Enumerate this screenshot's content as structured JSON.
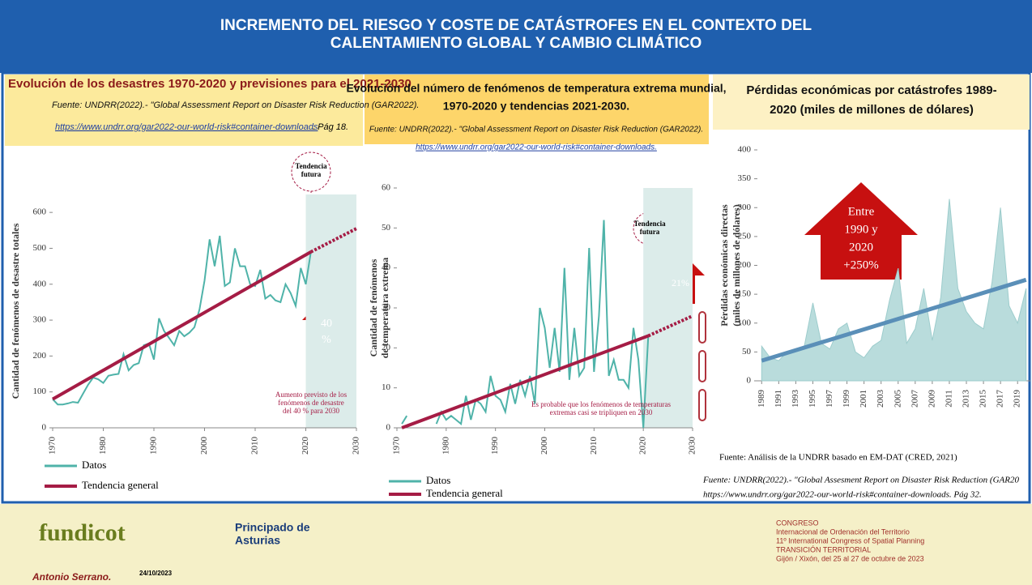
{
  "header": {
    "title": [
      "INCREMENTO DEL RIESGO Y COSTE DE CATÁSTROFES EN EL CONTEXTO DEL",
      "CALENTAMIENTO GLOBAL Y CAMBIO CLIMÁTICO"
    ]
  },
  "chart_data": [
    {
      "type": "line",
      "title": "Evolución de los desastres 1970-2020 y previsiones para el 2021-2030",
      "source": "Fuente: UNDRR(2022).- \"Global Assessment Report on Disaster Risk Reduction (GAR2022).",
      "link": "https://www.undrr.org/gar2022-our-world-risk#container-downloads",
      "link_suffix": ". Pág 18.",
      "ylabel": "Cantidad de fenómenos de desastre totales",
      "xlim": [
        1970,
        2030
      ],
      "xticks": [
        1970,
        1980,
        1990,
        2000,
        2010,
        2020,
        2030
      ],
      "ylim": [
        0,
        650
      ],
      "yticks": [
        0,
        100,
        200,
        300,
        400,
        500,
        600
      ],
      "series": [
        {
          "name": "Datos",
          "color": "#4fb3a9",
          "x": [
            1970,
            1971,
            1972,
            1973,
            1974,
            1975,
            1976,
            1977,
            1978,
            1979,
            1980,
            1981,
            1982,
            1983,
            1984,
            1985,
            1986,
            1987,
            1988,
            1989,
            1990,
            1991,
            1992,
            1993,
            1994,
            1995,
            1996,
            1997,
            1998,
            1999,
            2000,
            2001,
            2002,
            2003,
            2004,
            2005,
            2006,
            2007,
            2008,
            2009,
            2010,
            2011,
            2012,
            2013,
            2014,
            2015,
            2016,
            2017,
            2018,
            2019,
            2020,
            2021
          ],
          "values": [
            80,
            65,
            65,
            68,
            72,
            70,
            95,
            120,
            140,
            135,
            125,
            145,
            148,
            150,
            205,
            160,
            175,
            180,
            230,
            235,
            190,
            305,
            270,
            250,
            230,
            270,
            255,
            265,
            280,
            330,
            410,
            525,
            450,
            535,
            395,
            405,
            500,
            450,
            450,
            400,
            395,
            440,
            360,
            370,
            355,
            350,
            400,
            375,
            340,
            445,
            400,
            490
          ]
        },
        {
          "name": "Tendencia general",
          "color": "#a51c45",
          "x": [
            1970,
            2021
          ],
          "values": [
            80,
            490
          ]
        },
        {
          "color": "#a51c45",
          "style": "dotted",
          "x": [
            2021,
            2030
          ],
          "values": [
            490,
            555
          ]
        }
      ],
      "future": [
        "Tendencia",
        "futura"
      ],
      "arrow": [
        "40",
        "%"
      ],
      "note": [
        "Aumento previsto de los",
        "fenómenos de desastre",
        "del 40 % para 2030"
      ]
    },
    {
      "type": "line",
      "title": [
        "Evolución del número de fenómenos de temperatura extrema mundial,",
        "1970-2020 y tendencias 2021-2030."
      ],
      "source": "Fuente: UNDRR(2022).- \"Global Assessment Report on Disaster Risk Reduction (GAR2022).",
      "link": "https://www.undrr.org/gar2022-our-world-risk#container-downloads.",
      "ylabel": [
        "Cantidad de fenómenos",
        "de temperatura extrema"
      ],
      "xlim": [
        1970,
        2030
      ],
      "xticks": [
        1970,
        1980,
        1990,
        2000,
        2010,
        2020,
        2030
      ],
      "ylim": [
        0,
        60
      ],
      "yticks": [
        0,
        10,
        20,
        30,
        40,
        50,
        60
      ],
      "series": [
        {
          "name": "Datos",
          "color": "#4fb3a9",
          "x": [
            1971,
            1972,
            1973,
            1974,
            1975,
            1976,
            1977,
            1978,
            1979,
            1980,
            1981,
            1982,
            1983,
            1984,
            1985,
            1986,
            1987,
            1988,
            1989,
            1990,
            1991,
            1992,
            1993,
            1994,
            1995,
            1996,
            1997,
            1998,
            1999,
            2000,
            2001,
            2002,
            2003,
            2004,
            2005,
            2006,
            2007,
            2008,
            2009,
            2010,
            2011,
            2012,
            2013,
            2014,
            2015,
            2016,
            2017,
            2018,
            2019,
            2020,
            2021
          ],
          "values": [
            1,
            3,
            null,
            null,
            null,
            null,
            null,
            1,
            4,
            2,
            3,
            2,
            1,
            8,
            2,
            7,
            6,
            4,
            13,
            8,
            7,
            4,
            11,
            6,
            12,
            8,
            13,
            6,
            30,
            25,
            15,
            25,
            14,
            40,
            12,
            25,
            13,
            15,
            45,
            14,
            28,
            52,
            13,
            17,
            12,
            12,
            10,
            25,
            17,
            0,
            23
          ]
        },
        {
          "name": "Tendencia general",
          "color": "#a51c45",
          "x": [
            1971,
            2021
          ],
          "values": [
            0,
            23
          ]
        },
        {
          "color": "#a51c45",
          "style": "dotted",
          "x": [
            2021,
            2030
          ],
          "values": [
            23,
            28
          ]
        }
      ],
      "future": [
        "Tendencia",
        "futura"
      ],
      "arrow": "21%",
      "note": [
        "Es probable que los fenómenos de temperaturas",
        "extremas casi se tripliquen en 2030"
      ]
    },
    {
      "type": "area",
      "title": [
        "Pérdidas económicas por catástrofes 1989-",
        "2020 (miles de millones de dólares)"
      ],
      "ylabel": [
        "Pérdidas económicas directas",
        "(miles de millones de dólares)"
      ],
      "xlim": [
        1988.5,
        2020.5
      ],
      "xticks": [
        1989,
        1991,
        1993,
        1995,
        1997,
        1999,
        2001,
        2003,
        2005,
        2007,
        2009,
        2011,
        2013,
        2015,
        2017,
        2019
      ],
      "ylim": [
        0,
        400
      ],
      "yticks": [
        0,
        50,
        100,
        150,
        200,
        250,
        300,
        350,
        400
      ],
      "series": [
        {
          "color": "#b9dcdc",
          "style": "area",
          "x": [
            1989,
            1990,
            1991,
            1992,
            1993,
            1994,
            1995,
            1996,
            1997,
            1998,
            1999,
            2000,
            2001,
            2002,
            2003,
            2004,
            2005,
            2006,
            2007,
            2008,
            2009,
            2010,
            2011,
            2012,
            2013,
            2014,
            2015,
            2016,
            2017,
            2018,
            2019,
            2020
          ],
          "values": [
            60,
            40,
            35,
            50,
            55,
            60,
            135,
            65,
            55,
            90,
            100,
            50,
            40,
            60,
            70,
            140,
            195,
            65,
            90,
            160,
            70,
            145,
            315,
            160,
            120,
            100,
            90,
            170,
            300,
            130,
            100,
            160
          ]
        },
        {
          "color": "#5a8fb8",
          "x": [
            1989,
            2020
          ],
          "values": [
            35,
            175
          ]
        }
      ],
      "arrow": [
        "Entre",
        "1990 y",
        "2020",
        "+250%"
      ],
      "source": "Fuente: Análisis de la UNDRR basado en EM-DAT (CRED, 2021)",
      "source2": [
        "Fuente: UNDRR(2022).- \"Global Assesment Report on Disaster Risk Reduction (GAR20",
        "https://www.undrr.org/gar2022-our-world-risk#container-downloads. Pág 32."
      ]
    }
  ],
  "footer": {
    "logo1": "fundicot",
    "logo2": [
      "Principado de",
      "Asturias"
    ],
    "congress": [
      "CONGRESO",
      "Internacional de Ordenación del Territorio",
      "11º International Congress of Spatial Planning",
      "TRANSICIÓN TERRITORIAL",
      "Gijón / Xixón, del 25 al 27 de octubre de 2023"
    ],
    "author": "Antonio Serrano.",
    "date": "24/10/2023"
  }
}
